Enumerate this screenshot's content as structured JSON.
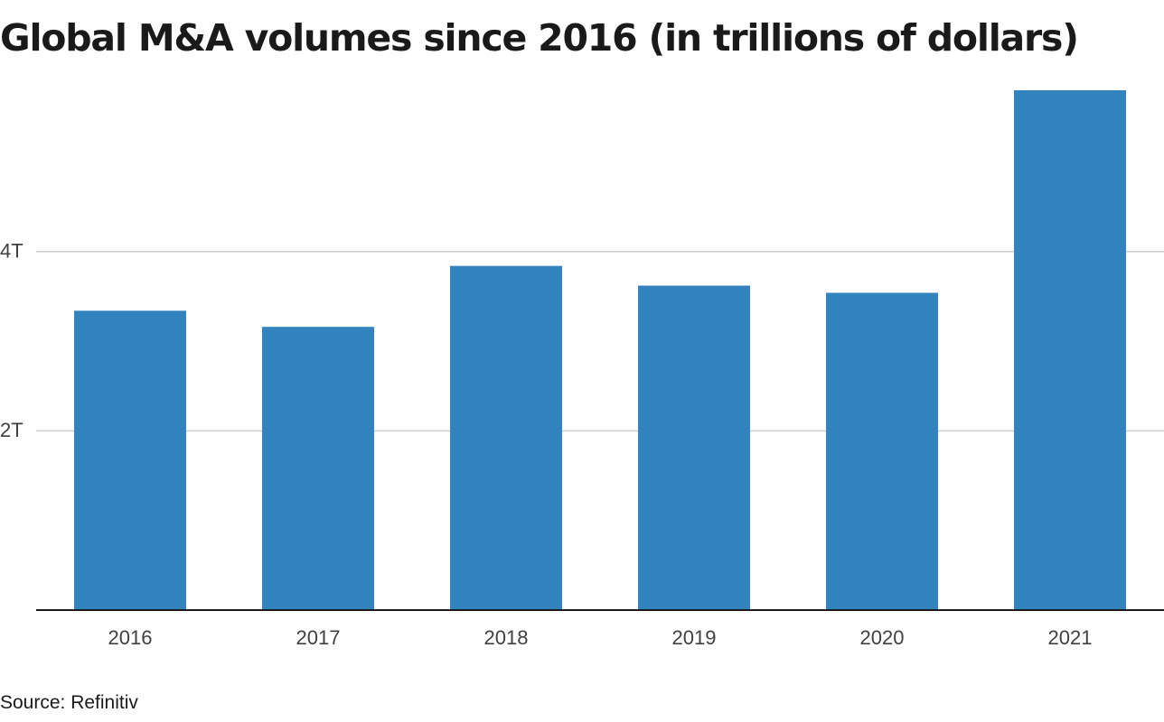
{
  "chart_data": {
    "type": "bar",
    "title": "Global M&A volumes since 2016 (in trillions of dollars)",
    "source": "Source: Refinitiv",
    "categories": [
      "2016",
      "2017",
      "2018",
      "2019",
      "2020",
      "2021"
    ],
    "values": [
      3.34,
      3.16,
      3.84,
      3.62,
      3.54,
      5.8
    ],
    "y_ticks": [
      {
        "value": 2,
        "label": "2T"
      },
      {
        "value": 4,
        "label": "4T"
      }
    ],
    "ylim": [
      0,
      5.8
    ],
    "grid": true,
    "bar_color": "#3283be",
    "grid_color": "#cfcfcf",
    "axis_color": "#1a1a1a",
    "tick_label_color": "#404040"
  }
}
